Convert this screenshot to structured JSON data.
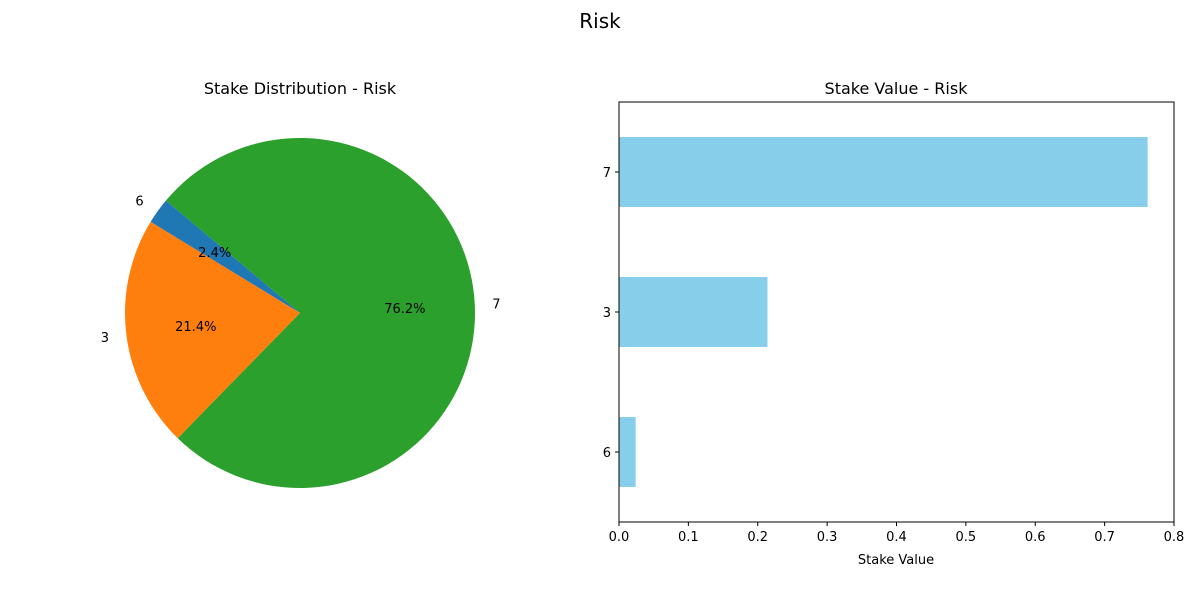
{
  "figure": {
    "suptitle": "Risk"
  },
  "chart_data": [
    {
      "type": "pie",
      "title": "Stake Distribution - Risk",
      "labels": [
        "6",
        "3",
        "7"
      ],
      "values": [
        0.024,
        0.214,
        0.762
      ],
      "percent_labels": [
        "2.4%",
        "21.4%",
        "76.2%"
      ],
      "colors": [
        "#1f77b4",
        "#ff7f0e",
        "#2ca02c"
      ],
      "start_angle_deg": 140,
      "direction": "counterclockwise"
    },
    {
      "type": "bar",
      "orientation": "horizontal",
      "title": "Stake Value - Risk",
      "categories": [
        "6",
        "3",
        "7"
      ],
      "values": [
        0.024,
        0.214,
        0.762
      ],
      "xlabel": "Stake Value",
      "ylabel": "",
      "xlim": [
        0,
        0.8
      ],
      "xticks": [
        "0.0",
        "0.1",
        "0.2",
        "0.3",
        "0.4",
        "0.5",
        "0.6",
        "0.7",
        "0.8"
      ],
      "bar_color": "#87ceeb",
      "grid": false
    }
  ]
}
